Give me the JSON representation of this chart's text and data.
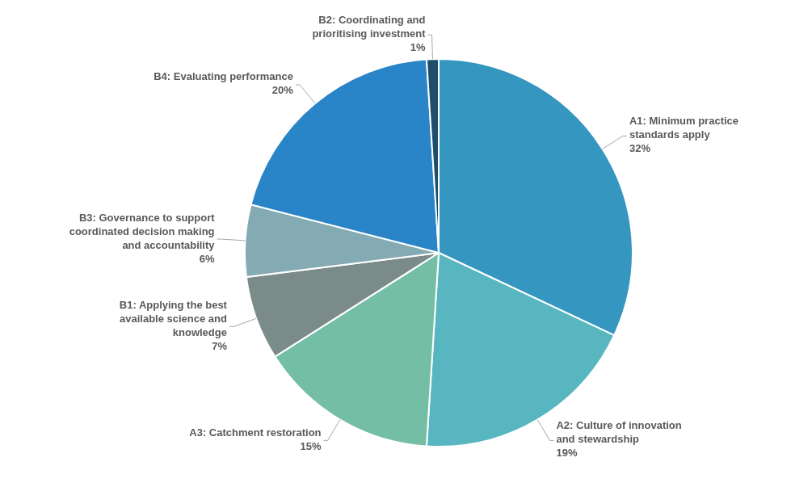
{
  "chart_data": {
    "type": "pie",
    "categories": [
      "A1: Minimum practice standards apply",
      "A2: Culture of innovation and stewardship",
      "A3: Catchment restoration",
      "B1: Applying the best available science and knowledge",
      "B3: Governance to support coordinated decision making and accountability",
      "B4: Evaluating performance",
      "B2: Coordinating and prioritising investment"
    ],
    "values": [
      32,
      19,
      15,
      7,
      6,
      20,
      1
    ],
    "colors": [
      "#3597bf",
      "#57b6c0",
      "#74bea6",
      "#7a8b8a",
      "#84abb3",
      "#2a84c8",
      "#1f4e6b"
    ],
    "value_labels": [
      "32%",
      "19%",
      "15%",
      "7%",
      "6%",
      "20%",
      "1%"
    ]
  }
}
